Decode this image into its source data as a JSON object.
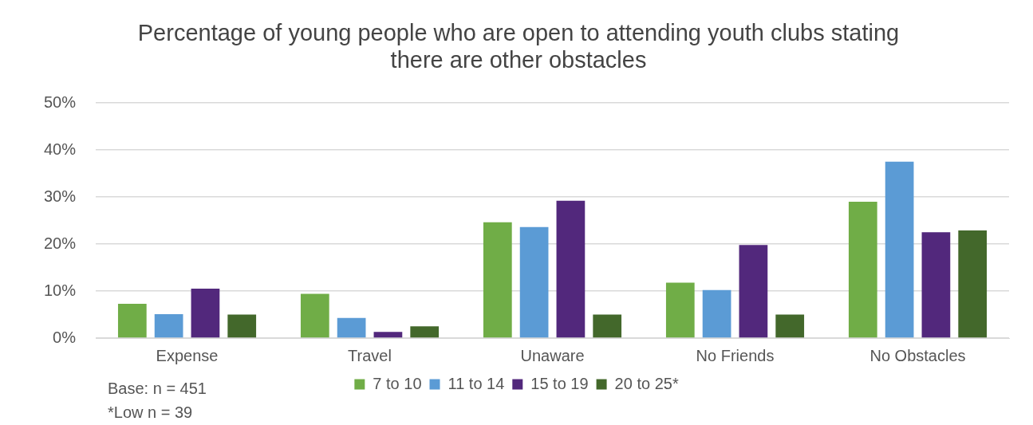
{
  "chart_data": {
    "type": "bar",
    "title": "Percentage of young people who are open to attending youth clubs stating there are other obstacles",
    "categories": [
      "Expense",
      "Travel",
      "Unaware",
      "No Friends",
      "No Obstacles"
    ],
    "series": [
      {
        "name": "7 to 10",
        "color": "#70ad47",
        "values": [
          7.3,
          9.4,
          24.6,
          11.8,
          29.0
        ]
      },
      {
        "name": "11 to 14",
        "color": "#5b9bd5",
        "values": [
          5.1,
          4.3,
          23.6,
          10.2,
          37.5
        ]
      },
      {
        "name": "15 to 19",
        "color": "#52287c",
        "values": [
          10.5,
          1.3,
          29.2,
          19.8,
          22.5
        ]
      },
      {
        "name": "20 to 25*",
        "color": "#43682b",
        "values": [
          5.0,
          2.5,
          5.0,
          5.0,
          22.9
        ]
      }
    ],
    "ylim": [
      0,
      50
    ],
    "yticks": [
      {
        "value": 0,
        "label": "0%"
      },
      {
        "value": 10,
        "label": "10%"
      },
      {
        "value": 20,
        "label": "20%"
      },
      {
        "value": 30,
        "label": "30%"
      },
      {
        "value": 40,
        "label": "40%"
      },
      {
        "value": 50,
        "label": "50%"
      }
    ],
    "grid": "y",
    "legend": "bottom",
    "annotations": [
      "Base: n = 451",
      "*Low n = 39"
    ]
  }
}
